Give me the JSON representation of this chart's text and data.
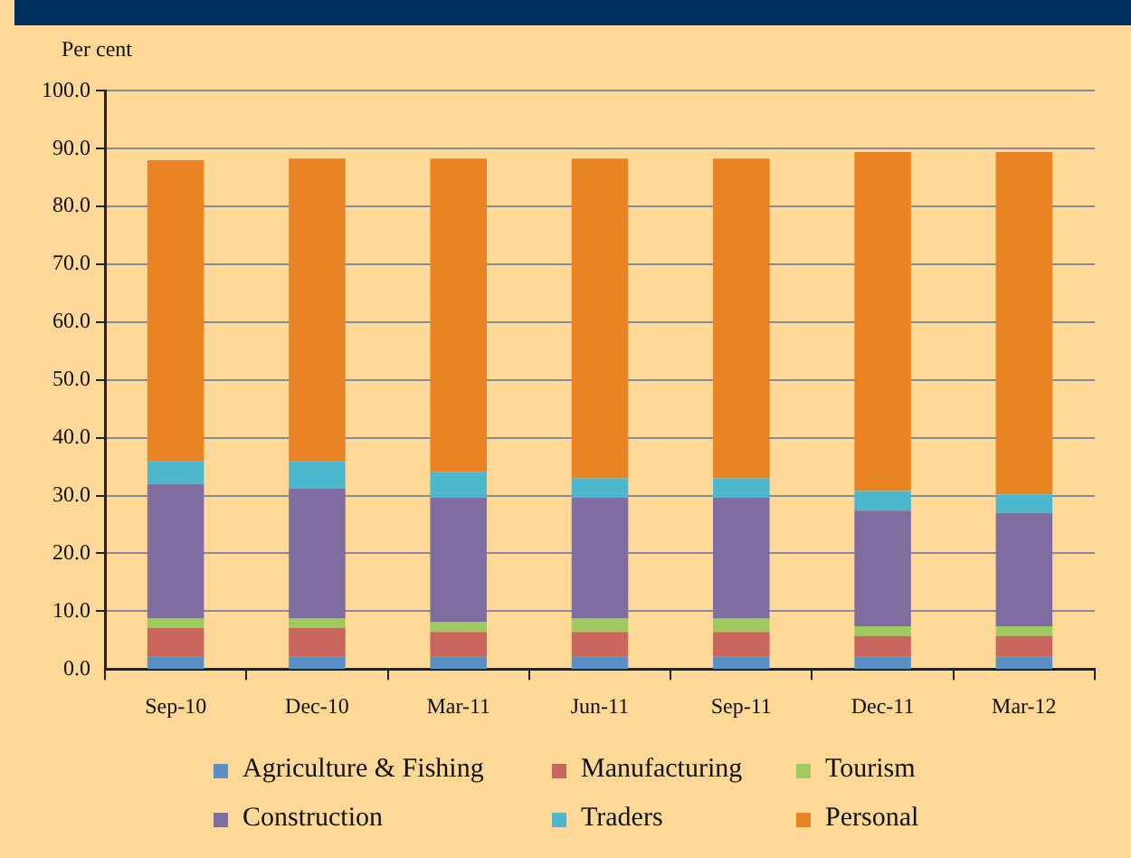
{
  "chart_data": {
    "type": "bar",
    "stacked": true,
    "ylabel": "Per cent",
    "categories": [
      "Sep-10",
      "Dec-10",
      "Mar-11",
      "Jun-11",
      "Sep-11",
      "Dec-11",
      "Mar-12"
    ],
    "series": [
      {
        "name": "Agriculture & Fishing",
        "color": "#5a8fc6",
        "values": [
          2.1,
          2.1,
          2.1,
          2.1,
          2.1,
          2.1,
          2.1
        ]
      },
      {
        "name": "Manufacturing",
        "color": "#c8665e",
        "values": [
          5.0,
          5.0,
          4.3,
          4.3,
          4.3,
          3.6,
          3.6
        ]
      },
      {
        "name": "Tourism",
        "color": "#9dcb60",
        "values": [
          1.6,
          1.6,
          1.7,
          2.3,
          2.3,
          1.7,
          1.7
        ]
      },
      {
        "name": "Construction",
        "color": "#7f6ca1",
        "values": [
          23.3,
          22.5,
          21.6,
          21.0,
          21.0,
          20.0,
          19.6
        ]
      },
      {
        "name": "Traders",
        "color": "#4bb8cd",
        "values": [
          4.0,
          4.8,
          4.4,
          3.3,
          3.3,
          3.4,
          3.2
        ]
      },
      {
        "name": "Personal",
        "color": "#ea8323",
        "values": [
          52.0,
          52.3,
          54.2,
          55.3,
          55.3,
          58.6,
          59.2
        ]
      }
    ],
    "ylim": [
      0,
      100
    ],
    "yticks": [
      {
        "value": 0,
        "label": "0.0"
      },
      {
        "value": 10,
        "label": "10.0"
      },
      {
        "value": 20,
        "label": "20.0"
      },
      {
        "value": 30,
        "label": "30.0"
      },
      {
        "value": 40,
        "label": "40.0"
      },
      {
        "value": 50,
        "label": "50.0"
      },
      {
        "value": 60,
        "label": "60.0"
      },
      {
        "value": 70,
        "label": "70.0"
      },
      {
        "value": 80,
        "label": "80.0"
      },
      {
        "value": 90,
        "label": "90.0"
      },
      {
        "value": 100,
        "label": "100.0"
      }
    ],
    "grid": "y",
    "legend": "bottom"
  }
}
